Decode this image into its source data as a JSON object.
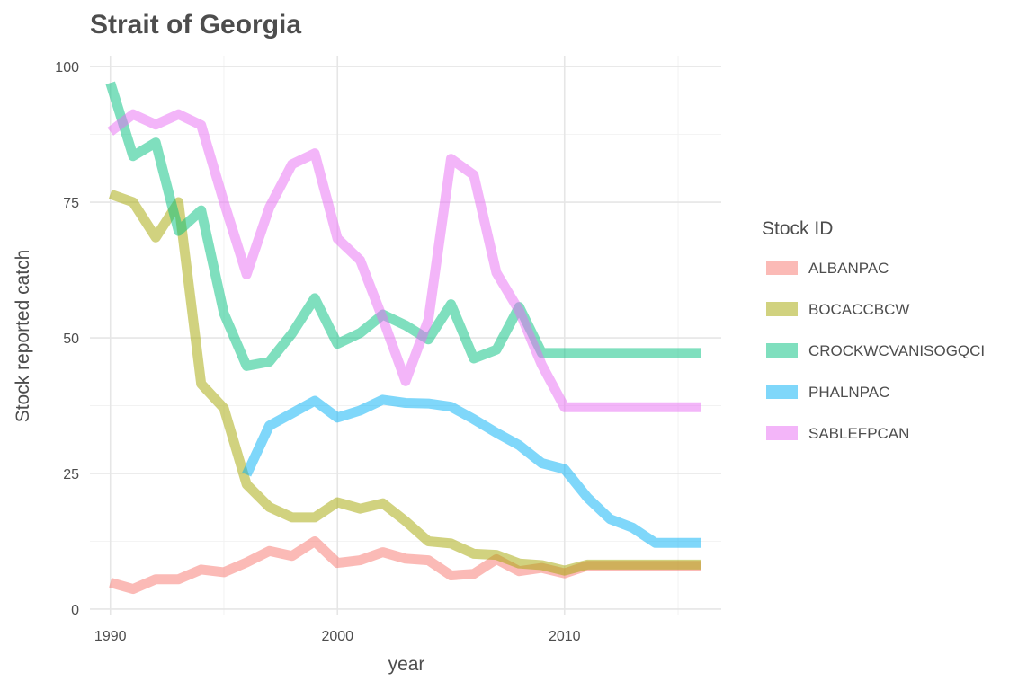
{
  "chart_data": {
    "type": "line",
    "title": "Strait of Georgia",
    "xlabel": "year",
    "ylabel": "Stock reported catch",
    "xlim": [
      1989.1,
      2016.9
    ],
    "ylim": [
      -1,
      102
    ],
    "x_ticks": [
      1990,
      2000,
      2010
    ],
    "x_tick_labels": [
      "1990",
      "2000",
      "2010"
    ],
    "y_ticks": [
      0,
      25,
      50,
      75,
      100
    ],
    "y_tick_labels": [
      "0",
      "25",
      "50",
      "75",
      "100"
    ],
    "grid": true,
    "legend": {
      "title": "Stock ID",
      "position": "right"
    },
    "series": [
      {
        "name": "ALBANPAC",
        "color": "#F8766D",
        "points": [
          [
            1990,
            4.9
          ],
          [
            1991,
            3.7
          ],
          [
            1992,
            5.5
          ],
          [
            1993,
            5.5
          ],
          [
            1994,
            7.3
          ],
          [
            1995,
            6.8
          ],
          [
            1996,
            8.6
          ],
          [
            1997,
            10.7
          ],
          [
            1998,
            9.8
          ],
          [
            1999,
            12.5
          ],
          [
            2000,
            8.5
          ],
          [
            2001,
            9.0
          ],
          [
            2002,
            10.5
          ],
          [
            2003,
            9.3
          ],
          [
            2004,
            9.0
          ],
          [
            2005,
            6.2
          ],
          [
            2006,
            6.5
          ],
          [
            2007,
            9.2
          ],
          [
            2008,
            7.0
          ],
          [
            2009,
            7.6
          ],
          [
            2010,
            6.6
          ],
          [
            2011,
            8.0
          ],
          [
            2012,
            8.0
          ],
          [
            2013,
            8.0
          ],
          [
            2014,
            8.0
          ],
          [
            2015,
            8.0
          ],
          [
            2016,
            8.0
          ]
        ]
      },
      {
        "name": "BOCACCBCW",
        "color": "#A3A500",
        "points": [
          [
            1990,
            76.5
          ],
          [
            1991,
            75.0
          ],
          [
            1992,
            68.5
          ],
          [
            1993,
            75.0
          ],
          [
            1994,
            41.5
          ],
          [
            1995,
            37.0
          ],
          [
            1996,
            23.0
          ],
          [
            1997,
            18.8
          ],
          [
            1998,
            16.9
          ],
          [
            1999,
            16.9
          ],
          [
            2000,
            19.7
          ],
          [
            2001,
            18.5
          ],
          [
            2002,
            19.5
          ],
          [
            2003,
            16.2
          ],
          [
            2004,
            12.5
          ],
          [
            2005,
            12.1
          ],
          [
            2006,
            10.2
          ],
          [
            2007,
            10.0
          ],
          [
            2008,
            8.4
          ],
          [
            2009,
            8.1
          ],
          [
            2010,
            7.1
          ],
          [
            2011,
            8.2
          ],
          [
            2012,
            8.2
          ],
          [
            2013,
            8.2
          ],
          [
            2014,
            8.2
          ],
          [
            2015,
            8.2
          ],
          [
            2016,
            8.2
          ]
        ]
      },
      {
        "name": "CROCKWCVANISOGQCI",
        "color": "#00BF7D",
        "points": [
          [
            1990,
            97.0
          ],
          [
            1991,
            83.5
          ],
          [
            1992,
            86.0
          ],
          [
            1993,
            69.7
          ],
          [
            1994,
            73.5
          ],
          [
            1995,
            54.5
          ],
          [
            1996,
            44.8
          ],
          [
            1997,
            45.6
          ],
          [
            1998,
            50.8
          ],
          [
            1999,
            57.3
          ],
          [
            2000,
            48.9
          ],
          [
            2001,
            50.9
          ],
          [
            2002,
            54.3
          ],
          [
            2003,
            52.3
          ],
          [
            2004,
            49.7
          ],
          [
            2005,
            56.2
          ],
          [
            2006,
            46.2
          ],
          [
            2007,
            47.8
          ],
          [
            2008,
            55.7
          ],
          [
            2009,
            47.2
          ],
          [
            2010,
            47.2
          ],
          [
            2011,
            47.2
          ],
          [
            2012,
            47.2
          ],
          [
            2013,
            47.2
          ],
          [
            2014,
            47.2
          ],
          [
            2015,
            47.2
          ],
          [
            2016,
            47.2
          ]
        ]
      },
      {
        "name": "PHALNPAC",
        "color": "#00B0F6",
        "points": [
          [
            1996,
            24.8
          ],
          [
            1997,
            33.8
          ],
          [
            1998,
            36.1
          ],
          [
            1999,
            38.4
          ],
          [
            2000,
            35.3
          ],
          [
            2001,
            36.6
          ],
          [
            2002,
            38.6
          ],
          [
            2003,
            38.0
          ],
          [
            2004,
            37.9
          ],
          [
            2005,
            37.3
          ],
          [
            2006,
            35.0
          ],
          [
            2007,
            32.5
          ],
          [
            2008,
            30.2
          ],
          [
            2009,
            26.9
          ],
          [
            2010,
            25.8
          ],
          [
            2011,
            20.6
          ],
          [
            2012,
            16.6
          ],
          [
            2013,
            15.0
          ],
          [
            2014,
            12.2
          ],
          [
            2015,
            12.2
          ],
          [
            2016,
            12.2
          ]
        ]
      },
      {
        "name": "SABLEFPCAN",
        "color": "#E76BF3",
        "points": [
          [
            1990,
            88.0
          ],
          [
            1991,
            91.2
          ],
          [
            1992,
            89.3
          ],
          [
            1993,
            91.2
          ],
          [
            1994,
            89.2
          ],
          [
            1995,
            75.0
          ],
          [
            1996,
            61.7
          ],
          [
            1997,
            74.0
          ],
          [
            1998,
            82.0
          ],
          [
            1999,
            84.0
          ],
          [
            2000,
            68.3
          ],
          [
            2001,
            64.3
          ],
          [
            2002,
            53.5
          ],
          [
            2003,
            42.0
          ],
          [
            2004,
            53.3
          ],
          [
            2005,
            83.0
          ],
          [
            2006,
            80.0
          ],
          [
            2007,
            62.0
          ],
          [
            2008,
            55.0
          ],
          [
            2009,
            45.0
          ],
          [
            2010,
            37.2
          ],
          [
            2011,
            37.2
          ],
          [
            2012,
            37.2
          ],
          [
            2013,
            37.2
          ],
          [
            2014,
            37.2
          ],
          [
            2015,
            37.2
          ],
          [
            2016,
            37.2
          ]
        ]
      }
    ]
  }
}
